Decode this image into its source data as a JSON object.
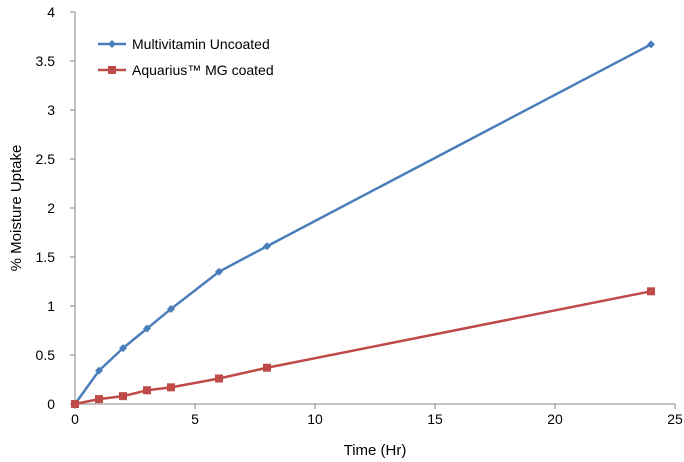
{
  "chart_data": {
    "type": "line",
    "title": "",
    "xlabel": "Time (Hr)",
    "ylabel": "% Moisture Uptake",
    "xlim": [
      0,
      25
    ],
    "ylim": [
      0,
      4
    ],
    "x_ticks": [
      0,
      5,
      10,
      15,
      20,
      25
    ],
    "y_ticks": [
      0,
      0.5,
      1,
      1.5,
      2,
      2.5,
      3,
      3.5,
      4
    ],
    "x_tick_labels": [
      "0",
      "5",
      "10",
      "15",
      "20",
      "25"
    ],
    "y_tick_labels": [
      "0",
      "0.5",
      "1",
      "1.5",
      "2",
      "2.5",
      "3",
      "3.5",
      "4"
    ],
    "grid": false,
    "legend_position": "top-left",
    "series": [
      {
        "name": "Multivitamin Uncoated",
        "color": "#4a7ebb",
        "marker": "diamond",
        "x": [
          0,
          1,
          2,
          3,
          4,
          6,
          8,
          24
        ],
        "y": [
          0,
          0.34,
          0.57,
          0.77,
          0.97,
          1.35,
          1.61,
          3.67
        ]
      },
      {
        "name": "Aquarius™ MG coated",
        "color": "#be4b48",
        "marker": "square",
        "x": [
          0,
          1,
          2,
          3,
          4,
          6,
          8,
          24
        ],
        "y": [
          0,
          0.05,
          0.08,
          0.14,
          0.17,
          0.26,
          0.37,
          1.15
        ]
      }
    ]
  }
}
